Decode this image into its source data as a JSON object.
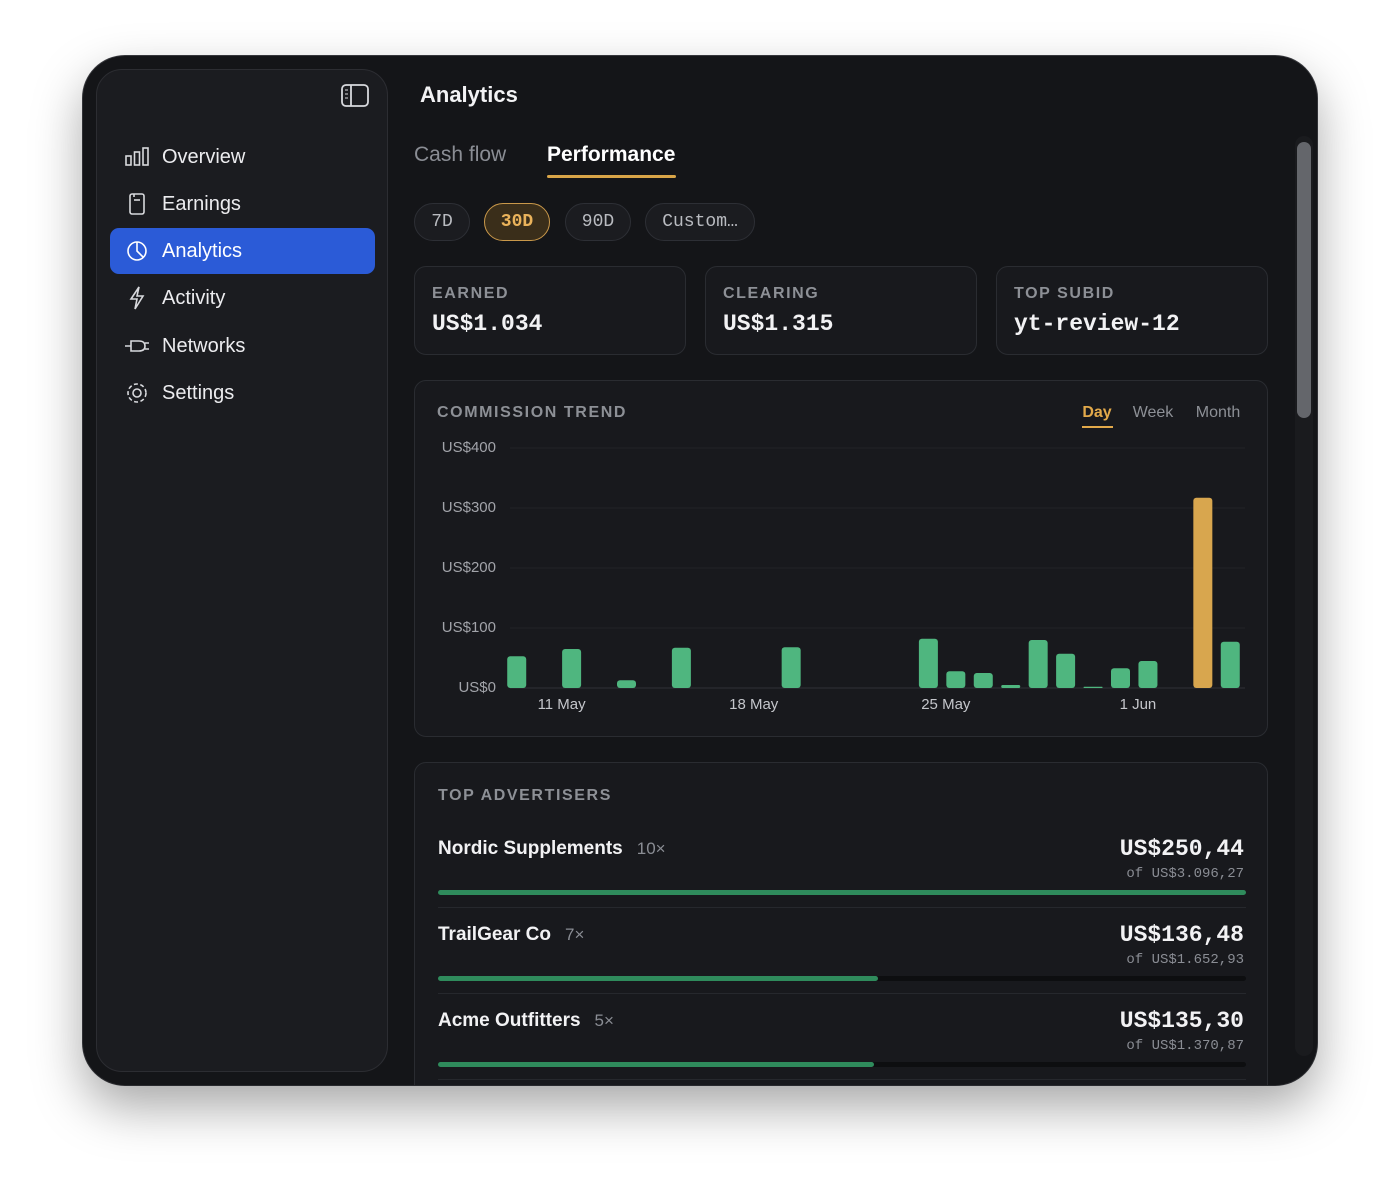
{
  "sidebar": {
    "items": [
      "Overview",
      "Earnings",
      "Analytics",
      "Activity",
      "Networks",
      "Settings"
    ]
  },
  "header": {
    "title": "Analytics"
  },
  "tabs": [
    "Cash flow",
    "Performance"
  ],
  "ranges": [
    "7D",
    "30D",
    "90D",
    "Custom…"
  ],
  "stats": [
    {
      "label": "EARNED",
      "value": "US$1.034"
    },
    {
      "label": "CLEARING",
      "value": "US$1.315"
    },
    {
      "label": "TOP SUBID",
      "value": "yt-review-12"
    }
  ],
  "chart_data": {
    "type": "bar",
    "title": "COMMISSION TREND",
    "periods": [
      "Day",
      "Week",
      "Month"
    ],
    "categories": [
      null,
      null,
      "11 May",
      null,
      null,
      null,
      null,
      null,
      null,
      "18 May",
      null,
      null,
      null,
      null,
      null,
      null,
      "25 May",
      null,
      null,
      null,
      null,
      null,
      null,
      "1 Jun",
      null,
      null,
      null
    ],
    "values": [
      53,
      0,
      65,
      0,
      13,
      0,
      67,
      0,
      0,
      0,
      68,
      0,
      0,
      0,
      0,
      82,
      28,
      25,
      5,
      80,
      57,
      2,
      33,
      45,
      0,
      317,
      77
    ],
    "colors": [
      "#4fb67f",
      "#4fb67f",
      "#4fb67f",
      "#4fb67f",
      "#4fb67f",
      "#4fb67f",
      "#4fb67f",
      "#4fb67f",
      "#4fb67f",
      "#4fb67f",
      "#4fb67f",
      "#4fb67f",
      "#4fb67f",
      "#4fb67f",
      "#4fb67f",
      "#4fb67f",
      "#4fb67f",
      "#4fb67f",
      "#4fb67f",
      "#4fb67f",
      "#4fb67f",
      "#4fb67f",
      "#4fb67f",
      "#4fb67f",
      "#4fb67f",
      "#d8a64e",
      "#4fb67f"
    ],
    "ylim": [
      0,
      400
    ],
    "yticks": [
      {
        "value": 0,
        "label": "US$0"
      },
      {
        "value": 100,
        "label": "US$100"
      },
      {
        "value": 200,
        "label": "US$200"
      },
      {
        "value": 300,
        "label": "US$300"
      },
      {
        "value": 400,
        "label": "US$400"
      }
    ],
    "grid": true
  },
  "top_advertisers": {
    "title": "TOP ADVERTISERS",
    "rows": [
      {
        "name": "Nordic Supplements",
        "count": "10×",
        "amount": "US$250,44",
        "total": "of US$3.096,27",
        "share": 100
      },
      {
        "name": "TrailGear Co",
        "count": "7×",
        "amount": "US$136,48",
        "total": "of US$1.652,93",
        "share": 54.5
      },
      {
        "name": "Acme Outfitters",
        "count": "5×",
        "amount": "US$135,30",
        "total": "of US$1.370,87",
        "share": 54
      }
    ]
  }
}
